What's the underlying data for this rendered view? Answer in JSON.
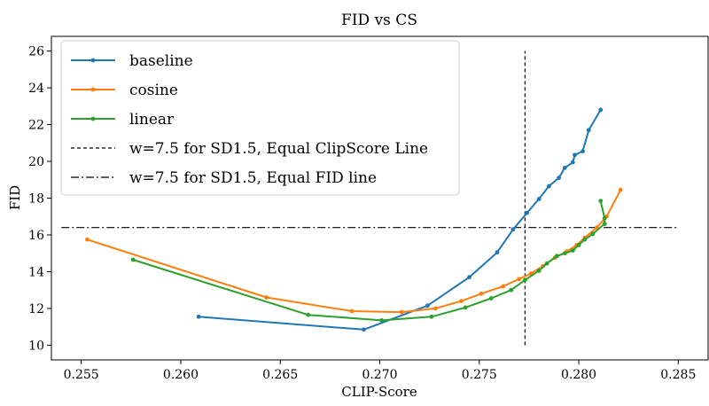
{
  "chart_data": {
    "type": "line",
    "title": "FID vs CS",
    "xlabel": "CLIP-Score",
    "ylabel": "FID",
    "xlim": [
      0.2535,
      0.2865
    ],
    "ylim": [
      9.2,
      26.8
    ],
    "xticks": [
      0.255,
      0.26,
      0.265,
      0.27,
      0.275,
      0.28,
      0.285
    ],
    "xtick_labels": [
      "0.255",
      "0.260",
      "0.265",
      "0.270",
      "0.275",
      "0.280",
      "0.285"
    ],
    "yticks": [
      10,
      12,
      14,
      16,
      18,
      20,
      22,
      24,
      26
    ],
    "ytick_labels": [
      "10",
      "12",
      "14",
      "16",
      "18",
      "20",
      "22",
      "24",
      "26"
    ],
    "grid": false,
    "legend_position": "top-left",
    "series": [
      {
        "name": "baseline",
        "color": "#1f77b4",
        "x": [
          0.2609,
          0.2692,
          0.2724,
          0.2745,
          0.2759,
          0.2767,
          0.2774,
          0.278,
          0.2785,
          0.279,
          0.2793,
          0.2797,
          0.2798,
          0.2802,
          0.2805,
          0.2811
        ],
        "y": [
          11.55,
          10.85,
          12.15,
          13.7,
          15.05,
          16.3,
          17.2,
          17.95,
          18.65,
          19.1,
          19.65,
          19.95,
          20.35,
          20.55,
          21.7,
          22.8
        ]
      },
      {
        "name": "cosine",
        "color": "#ff7f0e",
        "x": [
          0.2553,
          0.2643,
          0.2686,
          0.2711,
          0.2728,
          0.2741,
          0.2751,
          0.2762,
          0.277,
          0.2776,
          0.2782,
          0.2788,
          0.2794,
          0.2799,
          0.2803,
          0.2809,
          0.2814,
          0.2821
        ],
        "y": [
          15.75,
          12.6,
          11.85,
          11.8,
          12.0,
          12.4,
          12.8,
          13.2,
          13.6,
          13.9,
          14.3,
          14.75,
          15.1,
          15.45,
          15.85,
          16.4,
          17.0,
          18.45
        ]
      },
      {
        "name": "linear",
        "color": "#2ca02c",
        "x": [
          0.2576,
          0.2664,
          0.2701,
          0.2726,
          0.2743,
          0.2756,
          0.2766,
          0.2773,
          0.278,
          0.2784,
          0.2789,
          0.2793,
          0.2797,
          0.28,
          0.2803,
          0.2807,
          0.2813,
          0.2813,
          0.2811
        ],
        "y": [
          14.65,
          11.65,
          11.35,
          11.55,
          12.05,
          12.55,
          13.0,
          13.55,
          14.05,
          14.45,
          14.85,
          15.0,
          15.15,
          15.45,
          15.75,
          16.05,
          16.6,
          16.9,
          17.85
        ]
      }
    ],
    "reference_lines": [
      {
        "name": "w=7.5 for SD1.5, Equal ClipScore Line",
        "orientation": "vertical",
        "x": 0.2773,
        "y_range": [
          10.0,
          26.0
        ],
        "style": "dashed",
        "color": "#000000"
      },
      {
        "name": "w=7.5 for SD1.5, Equal FID line",
        "orientation": "horizontal",
        "y": 16.4,
        "x_range": [
          0.254,
          0.285
        ],
        "style": "dashdot",
        "color": "#000000"
      }
    ]
  }
}
